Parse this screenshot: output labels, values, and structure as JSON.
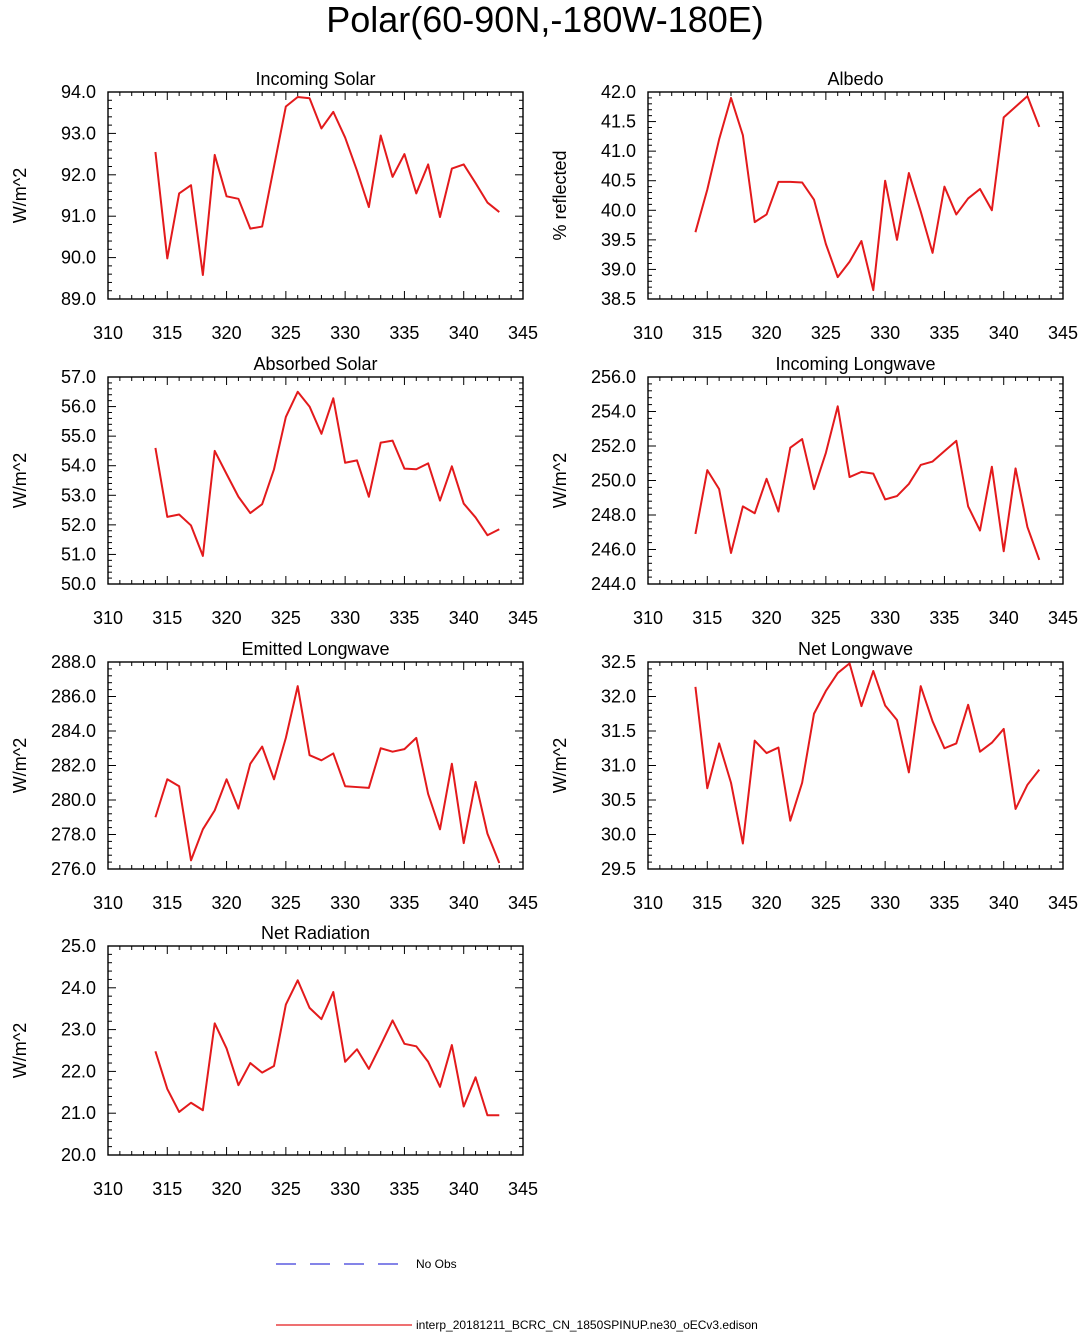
{
  "figure": {
    "title": "Polar(60-90N,-180W-180E)"
  },
  "legend": {
    "obs_label": "No Obs",
    "obs_color": "#3b3bd9",
    "model_label": "interp_20181211_BCRC_CN_1850SPINUP.ne30_oECv3.edison",
    "model_color": "#e31a1c"
  },
  "chart_data": [
    {
      "type": "line",
      "title": "Incoming Solar",
      "ylabel": "W/m^2",
      "xlim": [
        310,
        345
      ],
      "ylim": [
        89.0,
        94.0
      ],
      "xticks": [
        310,
        315,
        320,
        325,
        330,
        335,
        340,
        345
      ],
      "yticks": [
        89.0,
        90.0,
        91.0,
        92.0,
        93.0,
        94.0
      ],
      "ytick_decimals": 1,
      "x": [
        314,
        315,
        316,
        317,
        318,
        319,
        320,
        321,
        322,
        323,
        324,
        325,
        326,
        327,
        328,
        329,
        330,
        331,
        332,
        333,
        334,
        335,
        336,
        337,
        338,
        339,
        340,
        341,
        342,
        343
      ],
      "series": [
        {
          "values": [
            92.55,
            89.98,
            91.55,
            91.75,
            89.58,
            92.48,
            91.48,
            91.42,
            90.7,
            90.75,
            92.2,
            93.65,
            93.88,
            93.85,
            93.12,
            93.52,
            92.9,
            92.1,
            91.22,
            92.95,
            91.95,
            92.5,
            91.55,
            92.25,
            90.98,
            92.15,
            92.25,
            91.8,
            91.33,
            91.1
          ]
        }
      ]
    },
    {
      "type": "line",
      "title": "Albedo",
      "ylabel": "% reflected",
      "xlim": [
        310,
        345
      ],
      "ylim": [
        38.5,
        42.0
      ],
      "xticks": [
        310,
        315,
        320,
        325,
        330,
        335,
        340,
        345
      ],
      "yticks": [
        38.5,
        39.0,
        39.5,
        40.0,
        40.5,
        41.0,
        41.5,
        42.0
      ],
      "ytick_decimals": 1,
      "x": [
        314,
        315,
        316,
        317,
        318,
        319,
        320,
        321,
        322,
        323,
        324,
        325,
        326,
        327,
        328,
        329,
        330,
        331,
        332,
        333,
        334,
        335,
        336,
        337,
        338,
        339,
        340,
        341,
        342,
        343
      ],
      "series": [
        {
          "values": [
            39.63,
            40.35,
            41.2,
            41.9,
            41.27,
            39.8,
            39.93,
            40.48,
            40.48,
            40.47,
            40.18,
            39.43,
            38.87,
            39.13,
            39.48,
            38.65,
            40.5,
            39.5,
            40.63,
            39.98,
            39.28,
            40.4,
            39.93,
            40.2,
            40.36,
            40.0,
            41.57,
            41.75,
            41.93,
            41.41
          ]
        }
      ]
    },
    {
      "type": "line",
      "title": "Absorbed Solar",
      "ylabel": "W/m^2",
      "xlim": [
        310,
        345
      ],
      "ylim": [
        50.0,
        57.0
      ],
      "xticks": [
        310,
        315,
        320,
        325,
        330,
        335,
        340,
        345
      ],
      "yticks": [
        50.0,
        51.0,
        52.0,
        53.0,
        54.0,
        55.0,
        56.0,
        57.0
      ],
      "ytick_decimals": 1,
      "x": [
        314,
        315,
        316,
        317,
        318,
        319,
        320,
        321,
        322,
        323,
        324,
        325,
        326,
        327,
        328,
        329,
        330,
        331,
        332,
        333,
        334,
        335,
        336,
        337,
        338,
        339,
        340,
        341,
        342,
        343
      ],
      "series": [
        {
          "values": [
            54.6,
            52.27,
            52.35,
            51.98,
            50.95,
            54.5,
            53.72,
            52.95,
            52.4,
            52.7,
            53.88,
            55.65,
            56.5,
            56.0,
            55.08,
            56.28,
            54.1,
            54.18,
            52.95,
            54.78,
            54.85,
            53.9,
            53.88,
            54.08,
            52.82,
            53.98,
            52.72,
            52.25,
            51.65,
            51.85
          ]
        }
      ]
    },
    {
      "type": "line",
      "title": "Incoming Longwave",
      "ylabel": "W/m^2",
      "xlim": [
        310,
        345
      ],
      "ylim": [
        244.0,
        256.0
      ],
      "xticks": [
        310,
        315,
        320,
        325,
        330,
        335,
        340,
        345
      ],
      "yticks": [
        244.0,
        246.0,
        248.0,
        250.0,
        252.0,
        254.0,
        256.0
      ],
      "ytick_decimals": 1,
      "x": [
        314,
        315,
        316,
        317,
        318,
        319,
        320,
        321,
        322,
        323,
        324,
        325,
        326,
        327,
        328,
        329,
        330,
        331,
        332,
        333,
        334,
        335,
        336,
        337,
        338,
        339,
        340,
        341,
        342,
        343
      ],
      "series": [
        {
          "values": [
            246.9,
            250.6,
            249.5,
            245.8,
            248.5,
            248.1,
            250.1,
            248.2,
            251.9,
            252.4,
            249.5,
            251.6,
            254.3,
            250.2,
            250.5,
            250.4,
            248.9,
            249.1,
            249.8,
            250.9,
            251.1,
            251.7,
            252.3,
            248.5,
            247.1,
            250.8,
            245.9,
            250.7,
            247.3,
            245.4
          ]
        }
      ]
    },
    {
      "type": "line",
      "title": "Emitted Longwave",
      "ylabel": "W/m^2",
      "xlim": [
        310,
        345
      ],
      "ylim": [
        276.0,
        288.0
      ],
      "xticks": [
        310,
        315,
        320,
        325,
        330,
        335,
        340,
        345
      ],
      "yticks": [
        276.0,
        278.0,
        280.0,
        282.0,
        284.0,
        286.0,
        288.0
      ],
      "ytick_decimals": 1,
      "x": [
        314,
        315,
        316,
        317,
        318,
        319,
        320,
        321,
        322,
        323,
        324,
        325,
        326,
        327,
        328,
        329,
        330,
        331,
        332,
        333,
        334,
        335,
        336,
        337,
        338,
        339,
        340,
        341,
        342,
        343
      ],
      "series": [
        {
          "values": [
            279.0,
            281.2,
            280.8,
            276.5,
            278.3,
            279.4,
            281.2,
            279.5,
            282.1,
            283.1,
            281.2,
            283.6,
            286.6,
            282.6,
            282.3,
            282.7,
            280.8,
            280.75,
            280.7,
            283.0,
            282.8,
            282.95,
            283.6,
            280.35,
            278.3,
            282.1,
            277.5,
            281.05,
            278.05,
            276.35
          ]
        }
      ]
    },
    {
      "type": "line",
      "title": "Net Longwave",
      "ylabel": "W/m^2",
      "xlim": [
        310,
        345
      ],
      "ylim": [
        29.5,
        32.5
      ],
      "xticks": [
        310,
        315,
        320,
        325,
        330,
        335,
        340,
        345
      ],
      "yticks": [
        29.5,
        30.0,
        30.5,
        31.0,
        31.5,
        32.0,
        32.5
      ],
      "ytick_decimals": 1,
      "x": [
        314,
        315,
        316,
        317,
        318,
        319,
        320,
        321,
        322,
        323,
        324,
        325,
        326,
        327,
        328,
        329,
        330,
        331,
        332,
        333,
        334,
        335,
        336,
        337,
        338,
        339,
        340,
        341,
        342,
        343
      ],
      "series": [
        {
          "values": [
            32.14,
            30.67,
            31.32,
            30.75,
            29.87,
            31.36,
            31.18,
            31.26,
            30.2,
            30.75,
            31.75,
            32.08,
            32.34,
            32.48,
            31.86,
            32.37,
            31.87,
            31.66,
            30.9,
            32.15,
            31.64,
            31.25,
            31.32,
            31.88,
            31.2,
            31.33,
            31.53,
            30.37,
            30.72,
            30.94
          ]
        }
      ]
    },
    {
      "type": "line",
      "title": "Net Radiation",
      "ylabel": "W/m^2",
      "xlim": [
        310,
        345
      ],
      "ylim": [
        20.0,
        25.0
      ],
      "xticks": [
        310,
        315,
        320,
        325,
        330,
        335,
        340,
        345
      ],
      "yticks": [
        20.0,
        21.0,
        22.0,
        23.0,
        24.0,
        25.0
      ],
      "ytick_decimals": 1,
      "x": [
        314,
        315,
        316,
        317,
        318,
        319,
        320,
        321,
        322,
        323,
        324,
        325,
        326,
        327,
        328,
        329,
        330,
        331,
        332,
        333,
        334,
        335,
        336,
        337,
        338,
        339,
        340,
        341,
        342,
        343
      ],
      "series": [
        {
          "values": [
            22.48,
            21.58,
            21.03,
            21.25,
            21.07,
            23.15,
            22.55,
            21.67,
            22.2,
            21.97,
            22.13,
            23.6,
            24.18,
            23.52,
            23.25,
            23.9,
            22.23,
            22.53,
            22.06,
            22.63,
            23.22,
            22.66,
            22.6,
            22.23,
            21.63,
            22.63,
            21.16,
            21.86,
            20.95,
            20.95
          ]
        }
      ]
    }
  ]
}
